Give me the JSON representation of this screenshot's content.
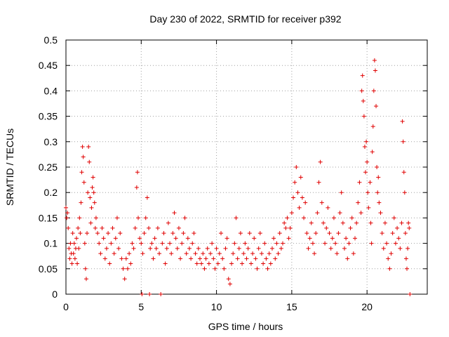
{
  "chart_data": {
    "type": "scatter",
    "title": "Day 230 of 2022, SRMTID for receiver p392",
    "xlabel": "GPS time / hours",
    "ylabel": "SRMTID / TECUs",
    "xlim": [
      0,
      24
    ],
    "ylim": [
      0,
      0.5
    ],
    "xticks": [
      0,
      5,
      10,
      15,
      20
    ],
    "yticks": [
      0,
      0.05,
      0.1,
      0.15,
      0.2,
      0.25,
      0.3,
      0.35,
      0.4,
      0.45,
      0.5
    ],
    "xtick_labels": [
      "0",
      "5",
      "10",
      "15",
      "20"
    ],
    "ytick_labels": [
      "0",
      "0.05",
      "0.1",
      "0.15",
      "0.2",
      "0.25",
      "0.3",
      "0.35",
      "0.4",
      "0.45",
      "0.5"
    ],
    "grid": true,
    "marker": "+",
    "series": [
      {
        "name": "SRMTID",
        "color": "#e00000",
        "points": [
          [
            0.0,
            0.17
          ],
          [
            0.05,
            0.15
          ],
          [
            0.1,
            0.16
          ],
          [
            0.15,
            0.13
          ],
          [
            0.2,
            0.09
          ],
          [
            0.25,
            0.07
          ],
          [
            0.3,
            0.1
          ],
          [
            0.35,
            0.08
          ],
          [
            0.4,
            0.06
          ],
          [
            0.45,
            0.12
          ],
          [
            0.5,
            0.08
          ],
          [
            0.55,
            0.1
          ],
          [
            0.6,
            0.07
          ],
          [
            0.65,
            0.09
          ],
          [
            0.7,
            0.11
          ],
          [
            0.75,
            0.06
          ],
          [
            0.8,
            0.13
          ],
          [
            0.85,
            0.09
          ],
          [
            0.9,
            0.15
          ],
          [
            0.95,
            0.12
          ],
          [
            1.0,
            0.18
          ],
          [
            1.05,
            0.24
          ],
          [
            1.1,
            0.29
          ],
          [
            1.15,
            0.27
          ],
          [
            1.2,
            0.22
          ],
          [
            1.25,
            0.1
          ],
          [
            1.3,
            0.05
          ],
          [
            1.35,
            0.03
          ],
          [
            1.4,
            0.12
          ],
          [
            1.45,
            0.2
          ],
          [
            1.5,
            0.29
          ],
          [
            1.55,
            0.26
          ],
          [
            1.6,
            0.19
          ],
          [
            1.65,
            0.14
          ],
          [
            1.7,
            0.17
          ],
          [
            1.75,
            0.21
          ],
          [
            1.8,
            0.23
          ],
          [
            1.85,
            0.2
          ],
          [
            1.9,
            0.18
          ],
          [
            1.95,
            0.13
          ],
          [
            2.0,
            0.15
          ],
          [
            2.1,
            0.12
          ],
          [
            2.2,
            0.1
          ],
          [
            2.3,
            0.08
          ],
          [
            2.4,
            0.13
          ],
          [
            2.5,
            0.11
          ],
          [
            2.6,
            0.07
          ],
          [
            2.7,
            0.09
          ],
          [
            2.8,
            0.12
          ],
          [
            2.9,
            0.06
          ],
          [
            3.0,
            0.1
          ],
          [
            3.1,
            0.13
          ],
          [
            3.2,
            0.08
          ],
          [
            3.3,
            0.11
          ],
          [
            3.4,
            0.15
          ],
          [
            3.5,
            0.09
          ],
          [
            3.6,
            0.12
          ],
          [
            3.7,
            0.07
          ],
          [
            3.8,
            0.05
          ],
          [
            3.9,
            0.03
          ],
          [
            4.0,
            0.07
          ],
          [
            4.1,
            0.05
          ],
          [
            4.2,
            0.08
          ],
          [
            4.3,
            0.06
          ],
          [
            4.4,
            0.1
          ],
          [
            4.5,
            0.09
          ],
          [
            4.6,
            0.13
          ],
          [
            4.7,
            0.21
          ],
          [
            4.75,
            0.24
          ],
          [
            4.8,
            0.15
          ],
          [
            4.9,
            0.11
          ],
          [
            5.0,
            0.1
          ],
          [
            5.05,
            0.0
          ],
          [
            5.1,
            0.08
          ],
          [
            5.2,
            0.12
          ],
          [
            5.3,
            0.15
          ],
          [
            5.4,
            0.19
          ],
          [
            5.5,
            0.13
          ],
          [
            5.55,
            0.0
          ],
          [
            5.6,
            0.09
          ],
          [
            5.7,
            0.1
          ],
          [
            5.8,
            0.07
          ],
          [
            5.9,
            0.11
          ],
          [
            6.0,
            0.09
          ],
          [
            6.1,
            0.13
          ],
          [
            6.2,
            0.08
          ],
          [
            6.3,
            0.0
          ],
          [
            6.4,
            0.1
          ],
          [
            6.5,
            0.12
          ],
          [
            6.6,
            0.06
          ],
          [
            6.7,
            0.09
          ],
          [
            6.8,
            0.14
          ],
          [
            6.9,
            0.1
          ],
          [
            7.0,
            0.08
          ],
          [
            7.1,
            0.12
          ],
          [
            7.2,
            0.16
          ],
          [
            7.3,
            0.11
          ],
          [
            7.4,
            0.09
          ],
          [
            7.5,
            0.13
          ],
          [
            7.6,
            0.07
          ],
          [
            7.7,
            0.1
          ],
          [
            7.8,
            0.12
          ],
          [
            7.9,
            0.15
          ],
          [
            8.0,
            0.08
          ],
          [
            8.1,
            0.11
          ],
          [
            8.2,
            0.09
          ],
          [
            8.3,
            0.07
          ],
          [
            8.4,
            0.1
          ],
          [
            8.5,
            0.12
          ],
          [
            8.6,
            0.08
          ],
          [
            8.7,
            0.06
          ],
          [
            8.8,
            0.09
          ],
          [
            8.9,
            0.07
          ],
          [
            9.0,
            0.06
          ],
          [
            9.1,
            0.08
          ],
          [
            9.2,
            0.05
          ],
          [
            9.3,
            0.07
          ],
          [
            9.4,
            0.09
          ],
          [
            9.5,
            0.06
          ],
          [
            9.6,
            0.08
          ],
          [
            9.7,
            0.1
          ],
          [
            9.8,
            0.07
          ],
          [
            9.9,
            0.05
          ],
          [
            10.0,
            0.09
          ],
          [
            10.1,
            0.06
          ],
          [
            10.2,
            0.08
          ],
          [
            10.3,
            0.12
          ],
          [
            10.4,
            0.07
          ],
          [
            10.5,
            0.05
          ],
          [
            10.6,
            0.09
          ],
          [
            10.7,
            0.11
          ],
          [
            10.8,
            0.03
          ],
          [
            10.9,
            0.02
          ],
          [
            11.0,
            0.06
          ],
          [
            11.1,
            0.08
          ],
          [
            11.2,
            0.1
          ],
          [
            11.3,
            0.15
          ],
          [
            11.4,
            0.07
          ],
          [
            11.5,
            0.09
          ],
          [
            11.6,
            0.12
          ],
          [
            11.7,
            0.06
          ],
          [
            11.8,
            0.08
          ],
          [
            11.9,
            0.1
          ],
          [
            12.0,
            0.07
          ],
          [
            12.1,
            0.09
          ],
          [
            12.2,
            0.12
          ],
          [
            12.3,
            0.06
          ],
          [
            12.4,
            0.08
          ],
          [
            12.5,
            0.11
          ],
          [
            12.6,
            0.07
          ],
          [
            12.7,
            0.05
          ],
          [
            12.8,
            0.09
          ],
          [
            12.9,
            0.12
          ],
          [
            13.0,
            0.08
          ],
          [
            13.1,
            0.06
          ],
          [
            13.2,
            0.1
          ],
          [
            13.3,
            0.07
          ],
          [
            13.4,
            0.05
          ],
          [
            13.5,
            0.08
          ],
          [
            13.6,
            0.06
          ],
          [
            13.7,
            0.09
          ],
          [
            13.8,
            0.11
          ],
          [
            13.9,
            0.07
          ],
          [
            14.0,
            0.1
          ],
          [
            14.1,
            0.08
          ],
          [
            14.2,
            0.12
          ],
          [
            14.3,
            0.09
          ],
          [
            14.4,
            0.1
          ],
          [
            14.5,
            0.14
          ],
          [
            14.6,
            0.13
          ],
          [
            14.7,
            0.15
          ],
          [
            14.8,
            0.11
          ],
          [
            14.9,
            0.13
          ],
          [
            15.0,
            0.16
          ],
          [
            15.1,
            0.19
          ],
          [
            15.2,
            0.22
          ],
          [
            15.3,
            0.25
          ],
          [
            15.4,
            0.2
          ],
          [
            15.5,
            0.17
          ],
          [
            15.6,
            0.23
          ],
          [
            15.7,
            0.19
          ],
          [
            15.8,
            0.15
          ],
          [
            15.9,
            0.18
          ],
          [
            16.0,
            0.12
          ],
          [
            16.1,
            0.09
          ],
          [
            16.2,
            0.11
          ],
          [
            16.3,
            0.14
          ],
          [
            16.4,
            0.1
          ],
          [
            16.5,
            0.08
          ],
          [
            16.6,
            0.12
          ],
          [
            16.7,
            0.16
          ],
          [
            16.8,
            0.22
          ],
          [
            16.9,
            0.26
          ],
          [
            17.0,
            0.18
          ],
          [
            17.1,
            0.14
          ],
          [
            17.2,
            0.1
          ],
          [
            17.3,
            0.13
          ],
          [
            17.4,
            0.17
          ],
          [
            17.5,
            0.12
          ],
          [
            17.6,
            0.09
          ],
          [
            17.7,
            0.11
          ],
          [
            17.8,
            0.15
          ],
          [
            17.9,
            0.1
          ],
          [
            18.0,
            0.08
          ],
          [
            18.1,
            0.12
          ],
          [
            18.2,
            0.16
          ],
          [
            18.3,
            0.2
          ],
          [
            18.4,
            0.14
          ],
          [
            18.5,
            0.09
          ],
          [
            18.6,
            0.11
          ],
          [
            18.7,
            0.07
          ],
          [
            18.8,
            0.1
          ],
          [
            18.9,
            0.13
          ],
          [
            19.0,
            0.15
          ],
          [
            19.1,
            0.08
          ],
          [
            19.2,
            0.11
          ],
          [
            19.3,
            0.14
          ],
          [
            19.4,
            0.18
          ],
          [
            19.5,
            0.22
          ],
          [
            19.6,
            0.16
          ],
          [
            19.65,
            0.4
          ],
          [
            19.7,
            0.43
          ],
          [
            19.75,
            0.38
          ],
          [
            19.8,
            0.35
          ],
          [
            19.85,
            0.29
          ],
          [
            19.9,
            0.24
          ],
          [
            19.95,
            0.3
          ],
          [
            20.0,
            0.26
          ],
          [
            20.05,
            0.2
          ],
          [
            20.1,
            0.17
          ],
          [
            20.2,
            0.22
          ],
          [
            20.25,
            0.14
          ],
          [
            20.3,
            0.1
          ],
          [
            20.35,
            0.28
          ],
          [
            20.4,
            0.33
          ],
          [
            20.45,
            0.4
          ],
          [
            20.5,
            0.46
          ],
          [
            20.55,
            0.44
          ],
          [
            20.6,
            0.37
          ],
          [
            20.65,
            0.25
          ],
          [
            20.7,
            0.2
          ],
          [
            20.75,
            0.23
          ],
          [
            20.8,
            0.18
          ],
          [
            20.9,
            0.16
          ],
          [
            21.0,
            0.12
          ],
          [
            21.1,
            0.09
          ],
          [
            21.2,
            0.14
          ],
          [
            21.3,
            0.1
          ],
          [
            21.4,
            0.07
          ],
          [
            21.5,
            0.05
          ],
          [
            21.6,
            0.08
          ],
          [
            21.7,
            0.12
          ],
          [
            21.8,
            0.15
          ],
          [
            21.9,
            0.1
          ],
          [
            22.0,
            0.13
          ],
          [
            22.1,
            0.11
          ],
          [
            22.2,
            0.09
          ],
          [
            22.3,
            0.14
          ],
          [
            22.35,
            0.34
          ],
          [
            22.4,
            0.3
          ],
          [
            22.45,
            0.24
          ],
          [
            22.5,
            0.2
          ],
          [
            22.55,
            0.12
          ],
          [
            22.6,
            0.07
          ],
          [
            22.65,
            0.05
          ],
          [
            22.7,
            0.09
          ],
          [
            22.75,
            0.14
          ],
          [
            22.8,
            0.13
          ],
          [
            22.85,
            0.0
          ]
        ]
      }
    ]
  }
}
